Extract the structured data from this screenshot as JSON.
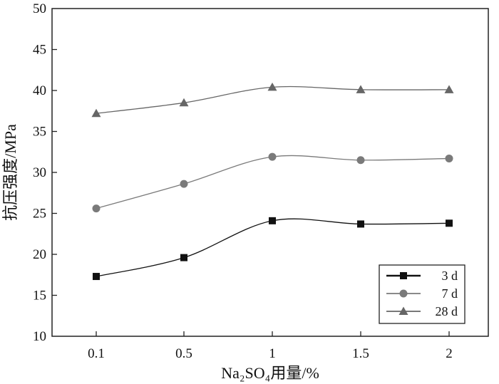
{
  "chart_data": {
    "type": "line",
    "title": "",
    "xlabel": "Na₂SO₄用量/%",
    "ylabel": "抗压强度/MPa",
    "categories": [
      "0.1",
      "0.5",
      "1",
      "1.5",
      "2"
    ],
    "ylim": [
      10,
      50
    ],
    "yticks": [
      10,
      15,
      20,
      25,
      30,
      35,
      40,
      45,
      50
    ],
    "legend_position": "bottom-right",
    "series": [
      {
        "name": "3 d",
        "marker": "square",
        "color": "#111111",
        "values": [
          17.3,
          19.6,
          24.1,
          23.7,
          23.8
        ]
      },
      {
        "name": "7 d",
        "marker": "circle",
        "color": "#7a7a7a",
        "values": [
          25.6,
          28.6,
          31.9,
          31.5,
          31.7
        ]
      },
      {
        "name": "28 d",
        "marker": "triangle",
        "color": "#666666",
        "values": [
          37.2,
          38.5,
          40.4,
          40.1,
          40.1
        ]
      }
    ]
  }
}
